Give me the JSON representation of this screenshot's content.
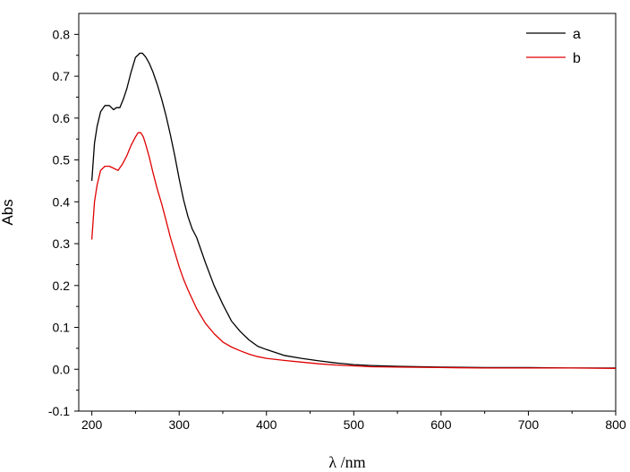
{
  "chart_data": {
    "type": "line",
    "xlabel": "λ /nm",
    "ylabel": "Abs",
    "xlim": [
      185,
      800
    ],
    "ylim": [
      -0.1,
      0.85
    ],
    "xticks": [
      200,
      300,
      400,
      500,
      600,
      700,
      800
    ],
    "xtick_labels": [
      "200",
      "300",
      "400",
      "500",
      "600",
      "700",
      "800"
    ],
    "yticks": [
      -0.1,
      0.0,
      0.1,
      0.2,
      0.3,
      0.4,
      0.5,
      0.6,
      0.7,
      0.8
    ],
    "ytick_labels": [
      "-0.1",
      "0.0",
      "0.1",
      "0.2",
      "0.3",
      "0.4",
      "0.5",
      "0.6",
      "0.7",
      "0.8"
    ],
    "grid": false,
    "legend_position": "top-right",
    "series": [
      {
        "name": "a",
        "color": "#000000",
        "x": [
          200,
          203,
          206,
          210,
          215,
          220,
          225,
          228,
          232,
          236,
          240,
          245,
          250,
          255,
          258,
          262,
          266,
          270,
          275,
          280,
          285,
          290,
          295,
          300,
          305,
          310,
          315,
          320,
          325,
          330,
          340,
          350,
          360,
          370,
          380,
          390,
          400,
          420,
          440,
          460,
          480,
          500,
          520,
          550,
          600,
          650,
          700,
          750,
          800
        ],
        "y": [
          0.45,
          0.54,
          0.58,
          0.615,
          0.63,
          0.63,
          0.62,
          0.625,
          0.625,
          0.645,
          0.67,
          0.71,
          0.745,
          0.755,
          0.755,
          0.745,
          0.73,
          0.71,
          0.68,
          0.645,
          0.605,
          0.56,
          0.51,
          0.455,
          0.405,
          0.365,
          0.335,
          0.315,
          0.285,
          0.255,
          0.2,
          0.155,
          0.115,
          0.09,
          0.07,
          0.055,
          0.047,
          0.033,
          0.026,
          0.02,
          0.015,
          0.011,
          0.009,
          0.007,
          0.005,
          0.004,
          0.004,
          0.003,
          0.003
        ]
      },
      {
        "name": "b",
        "color": "#e00000",
        "x": [
          200,
          203,
          206,
          210,
          215,
          220,
          225,
          230,
          235,
          240,
          245,
          250,
          253,
          256,
          259,
          262,
          266,
          270,
          275,
          280,
          285,
          290,
          295,
          300,
          305,
          310,
          320,
          330,
          340,
          350,
          360,
          370,
          380,
          390,
          400,
          420,
          440,
          460,
          480,
          500,
          520,
          550,
          600,
          650,
          700,
          750,
          800
        ],
        "y": [
          0.31,
          0.4,
          0.44,
          0.475,
          0.485,
          0.485,
          0.48,
          0.475,
          0.49,
          0.51,
          0.535,
          0.555,
          0.565,
          0.565,
          0.555,
          0.535,
          0.505,
          0.47,
          0.43,
          0.395,
          0.355,
          0.315,
          0.28,
          0.245,
          0.215,
          0.19,
          0.145,
          0.11,
          0.085,
          0.065,
          0.053,
          0.044,
          0.036,
          0.03,
          0.026,
          0.021,
          0.017,
          0.013,
          0.01,
          0.008,
          0.006,
          0.005,
          0.004,
          0.003,
          0.003,
          0.003,
          0.002
        ]
      }
    ]
  }
}
